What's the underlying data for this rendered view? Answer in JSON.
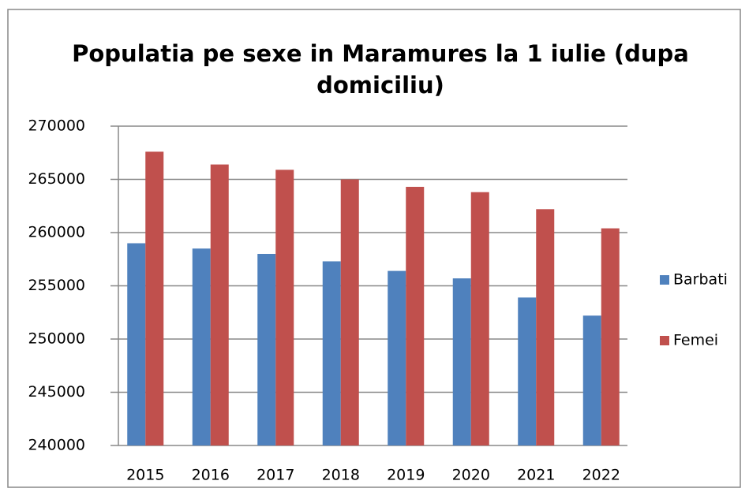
{
  "chart_data": {
    "type": "bar",
    "title": [
      "Populatia pe sexe in Maramures la 1 iulie (dupa",
      "domiciliu)"
    ],
    "categories": [
      "2015",
      "2016",
      "2017",
      "2018",
      "2019",
      "2020",
      "2021",
      "2022"
    ],
    "series": [
      {
        "name": "Barbati",
        "color": "#4f81bd",
        "values": [
          259000,
          258500,
          258000,
          257300,
          256400,
          255700,
          253900,
          252200
        ]
      },
      {
        "name": "Femei",
        "color": "#c0504d",
        "values": [
          267600,
          266400,
          265900,
          265000,
          264300,
          263800,
          262200,
          260400
        ]
      }
    ],
    "ylim": [
      240000,
      270000
    ],
    "yticks": [
      240000,
      245000,
      250000,
      255000,
      260000,
      265000,
      270000
    ],
    "grid": true,
    "legend": "right"
  }
}
